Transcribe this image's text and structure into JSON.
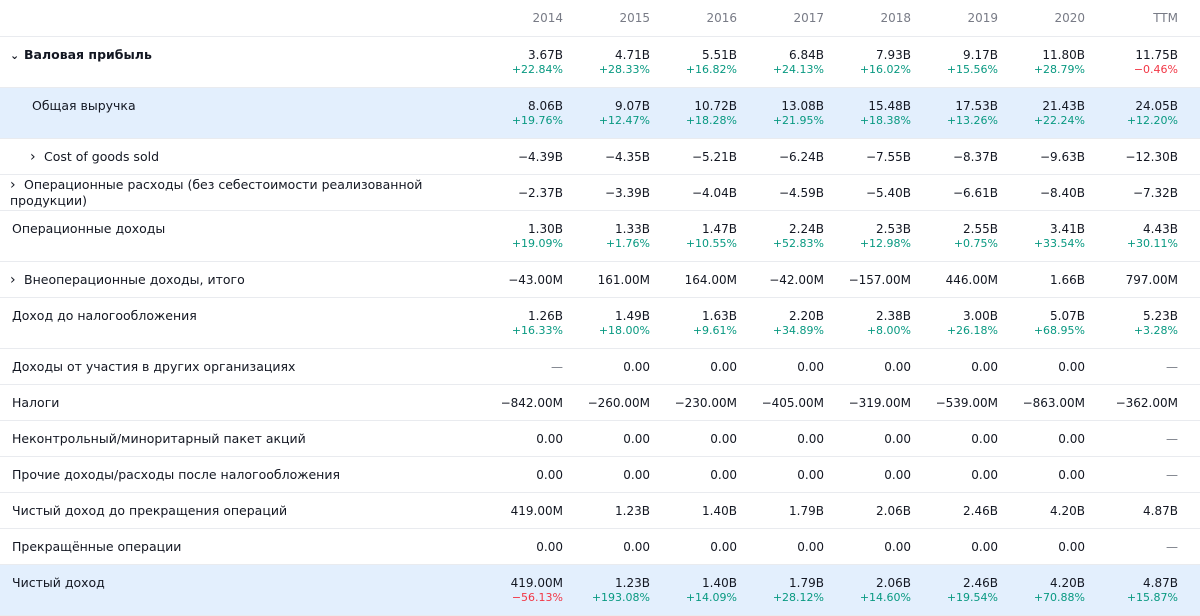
{
  "years": [
    "2014",
    "2015",
    "2016",
    "2017",
    "2018",
    "2019",
    "2020",
    "TTM"
  ],
  "rows": [
    {
      "label": "Валовая прибыль",
      "chevron": "chevron-down-icon",
      "indent": 0,
      "bold": true,
      "hl": false,
      "values": [
        "3.67B",
        "4.71B",
        "5.51B",
        "6.84B",
        "7.93B",
        "9.17B",
        "11.80B",
        "11.75B"
      ],
      "changes": [
        "+22.84%",
        "+28.33%",
        "+16.82%",
        "+24.13%",
        "+16.02%",
        "+15.56%",
        "+28.79%",
        "−0.46%"
      ]
    },
    {
      "label": "Общая выручка",
      "chevron": "",
      "indent": 1,
      "bold": false,
      "hl": true,
      "values": [
        "8.06B",
        "9.07B",
        "10.72B",
        "13.08B",
        "15.48B",
        "17.53B",
        "21.43B",
        "24.05B"
      ],
      "changes": [
        "+19.76%",
        "+12.47%",
        "+18.28%",
        "+21.95%",
        "+18.38%",
        "+13.26%",
        "+22.24%",
        "+12.20%"
      ]
    },
    {
      "label": "Cost of goods sold",
      "chevron": "chevron-right-icon",
      "indent": 1,
      "bold": false,
      "hl": false,
      "values": [
        "−4.39B",
        "−4.35B",
        "−5.21B",
        "−6.24B",
        "−7.55B",
        "−8.37B",
        "−9.63B",
        "−12.30B"
      ],
      "changes": []
    },
    {
      "label": "Операционные расходы (без себестоимости реализованной продукции)",
      "chevron": "chevron-right-icon",
      "indent": 0,
      "bold": false,
      "hl": false,
      "values": [
        "−2.37B",
        "−3.39B",
        "−4.04B",
        "−4.59B",
        "−5.40B",
        "−6.61B",
        "−8.40B",
        "−7.32B"
      ],
      "changes": []
    },
    {
      "label": "Операционные доходы",
      "chevron": "",
      "indent": 0,
      "bold": false,
      "hl": false,
      "values": [
        "1.30B",
        "1.33B",
        "1.47B",
        "2.24B",
        "2.53B",
        "2.55B",
        "3.41B",
        "4.43B"
      ],
      "changes": [
        "+19.09%",
        "+1.76%",
        "+10.55%",
        "+52.83%",
        "+12.98%",
        "+0.75%",
        "+33.54%",
        "+30.11%"
      ]
    },
    {
      "label": "Внеоперационные доходы, итого",
      "chevron": "chevron-right-icon",
      "indent": 0,
      "bold": false,
      "hl": false,
      "values": [
        "−43.00M",
        "161.00M",
        "164.00M",
        "−42.00M",
        "−157.00M",
        "446.00M",
        "1.66B",
        "797.00M"
      ],
      "changes": []
    },
    {
      "label": "Доход до налогообложения",
      "chevron": "",
      "indent": 0,
      "bold": false,
      "hl": false,
      "values": [
        "1.26B",
        "1.49B",
        "1.63B",
        "2.20B",
        "2.38B",
        "3.00B",
        "5.07B",
        "5.23B"
      ],
      "changes": [
        "+16.33%",
        "+18.00%",
        "+9.61%",
        "+34.89%",
        "+8.00%",
        "+26.18%",
        "+68.95%",
        "+3.28%"
      ]
    },
    {
      "label": "Доходы от участия в других организациях",
      "chevron": "",
      "indent": 0,
      "bold": false,
      "hl": false,
      "values": [
        "—",
        "0.00",
        "0.00",
        "0.00",
        "0.00",
        "0.00",
        "0.00",
        "—"
      ],
      "changes": []
    },
    {
      "label": "Налоги",
      "chevron": "",
      "indent": 0,
      "bold": false,
      "hl": false,
      "values": [
        "−842.00M",
        "−260.00M",
        "−230.00M",
        "−405.00M",
        "−319.00M",
        "−539.00M",
        "−863.00M",
        "−362.00M"
      ],
      "changes": []
    },
    {
      "label": "Неконтрольный/миноритарный пакет акций",
      "chevron": "",
      "indent": 0,
      "bold": false,
      "hl": false,
      "values": [
        "0.00",
        "0.00",
        "0.00",
        "0.00",
        "0.00",
        "0.00",
        "0.00",
        "—"
      ],
      "changes": []
    },
    {
      "label": "Прочие доходы/расходы после налогообложения",
      "chevron": "",
      "indent": 0,
      "bold": false,
      "hl": false,
      "values": [
        "0.00",
        "0.00",
        "0.00",
        "0.00",
        "0.00",
        "0.00",
        "0.00",
        "—"
      ],
      "changes": []
    },
    {
      "label": "Чистый доход до прекращения операций",
      "chevron": "",
      "indent": 0,
      "bold": false,
      "hl": false,
      "values": [
        "419.00M",
        "1.23B",
        "1.40B",
        "1.79B",
        "2.06B",
        "2.46B",
        "4.20B",
        "4.87B"
      ],
      "changes": []
    },
    {
      "label": "Прекращённые операции",
      "chevron": "",
      "indent": 0,
      "bold": false,
      "hl": false,
      "values": [
        "0.00",
        "0.00",
        "0.00",
        "0.00",
        "0.00",
        "0.00",
        "0.00",
        "—"
      ],
      "changes": []
    },
    {
      "label": "Чистый доход",
      "chevron": "",
      "indent": 0,
      "bold": false,
      "hl": true,
      "values": [
        "419.00M",
        "1.23B",
        "1.40B",
        "1.79B",
        "2.06B",
        "2.46B",
        "4.20B",
        "4.87B"
      ],
      "changes": [
        "−56.13%",
        "+193.08%",
        "+14.09%",
        "+28.12%",
        "+14.60%",
        "+19.54%",
        "+70.88%",
        "+15.87%"
      ]
    }
  ],
  "colors": {
    "positive": "#089981",
    "negative": "#f23645",
    "highlight": "#e3effd",
    "muted": "#787b86"
  }
}
